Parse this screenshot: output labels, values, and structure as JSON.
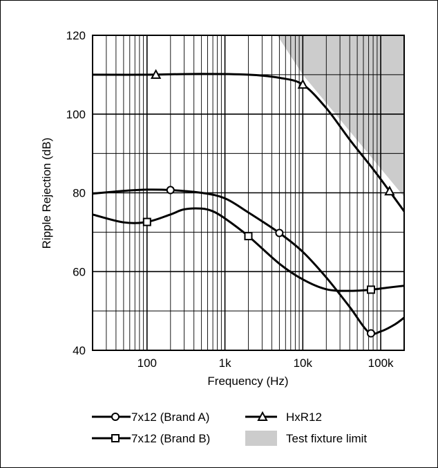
{
  "chart_data": {
    "type": "line",
    "title": "",
    "xlabel": "Frequency (Hz)",
    "ylabel": "Ripple Rejection (dB)",
    "x_scale": "log",
    "xlim": [
      20,
      200000
    ],
    "ylim": [
      40,
      120
    ],
    "grid": true,
    "legend_position": "bottom",
    "x_ticks": [
      {
        "value": 100,
        "label": "100"
      },
      {
        "value": 1000,
        "label": "1k"
      },
      {
        "value": 10000,
        "label": "10k"
      },
      {
        "value": 100000,
        "label": "100k"
      }
    ],
    "y_ticks": [
      {
        "value": 40,
        "label": "40"
      },
      {
        "value": 60,
        "label": "60"
      },
      {
        "value": 80,
        "label": "80"
      },
      {
        "value": 100,
        "label": "100"
      },
      {
        "value": 120,
        "label": "120"
      }
    ],
    "series": [
      {
        "name": "7x12 (Brand A)",
        "marker": "circle",
        "color": "#000000",
        "points": [
          [
            20,
            79.8
          ],
          [
            50,
            80.5
          ],
          [
            100,
            80.8
          ],
          [
            200,
            80.7
          ],
          [
            500,
            80.0
          ],
          [
            1000,
            78.6
          ],
          [
            2000,
            75.0
          ],
          [
            5000,
            69.8
          ],
          [
            10000,
            65.0
          ],
          [
            20000,
            58.5
          ],
          [
            40000,
            51.0
          ],
          [
            70000,
            44.6
          ],
          [
            100000,
            44.8
          ],
          [
            150000,
            46.5
          ],
          [
            200000,
            48.3
          ]
        ],
        "marker_points": [
          [
            200,
            80.7
          ],
          [
            5000,
            69.8
          ],
          [
            75000,
            44.3
          ]
        ]
      },
      {
        "name": "7x12 (Brand B)",
        "marker": "square",
        "color": "#000000",
        "points": [
          [
            20,
            74.5
          ],
          [
            50,
            72.5
          ],
          [
            100,
            72.6
          ],
          [
            200,
            74.5
          ],
          [
            300,
            75.8
          ],
          [
            500,
            76.0
          ],
          [
            700,
            75.3
          ],
          [
            1000,
            73.5
          ],
          [
            2000,
            69.0
          ],
          [
            5000,
            62.0
          ],
          [
            10000,
            58.0
          ],
          [
            20000,
            55.5
          ],
          [
            40000,
            55.1
          ],
          [
            75000,
            55.4
          ],
          [
            120000,
            55.9
          ],
          [
            200000,
            56.4
          ]
        ],
        "marker_points": [
          [
            100,
            72.6
          ],
          [
            2000,
            69.0
          ],
          [
            75000,
            55.4
          ]
        ]
      },
      {
        "name": "HxR12",
        "marker": "triangle",
        "color": "#000000",
        "points": [
          [
            20,
            110.0
          ],
          [
            100,
            110.0
          ],
          [
            500,
            110.2
          ],
          [
            2000,
            110.0
          ],
          [
            5000,
            109.2
          ],
          [
            10000,
            107.5
          ],
          [
            20000,
            101.5
          ],
          [
            40000,
            93.5
          ],
          [
            80000,
            86.0
          ],
          [
            130000,
            80.4
          ],
          [
            200000,
            75.3
          ]
        ],
        "marker_points": [
          [
            130,
            110.0
          ],
          [
            10000,
            107.5
          ],
          [
            130000,
            80.4
          ]
        ]
      }
    ],
    "shaded_regions": [
      {
        "name": "Test fixture limit",
        "color": "#cccccc",
        "polygon": [
          [
            4700,
            120
          ],
          [
            200000,
            120
          ],
          [
            200000,
            79
          ],
          [
            10000,
            110
          ]
        ]
      }
    ]
  }
}
